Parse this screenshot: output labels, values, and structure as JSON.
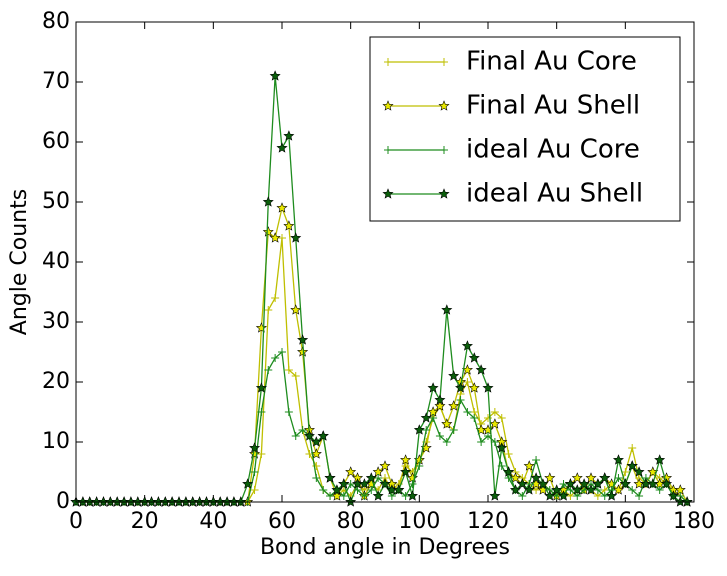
{
  "chart_data": {
    "type": "line",
    "xlabel": "Bond angle in Degrees",
    "ylabel": "Angle Counts",
    "x": [
      0,
      2,
      4,
      6,
      8,
      10,
      12,
      14,
      16,
      18,
      20,
      22,
      24,
      26,
      28,
      30,
      32,
      34,
      36,
      38,
      40,
      42,
      44,
      46,
      48,
      50,
      52,
      54,
      56,
      58,
      60,
      62,
      64,
      66,
      68,
      70,
      72,
      74,
      76,
      78,
      80,
      82,
      84,
      86,
      88,
      90,
      92,
      94,
      96,
      98,
      100,
      102,
      104,
      106,
      108,
      110,
      112,
      114,
      116,
      118,
      120,
      122,
      124,
      126,
      128,
      130,
      132,
      134,
      136,
      138,
      140,
      142,
      144,
      146,
      148,
      150,
      152,
      154,
      156,
      158,
      160,
      162,
      164,
      166,
      168,
      170,
      172,
      174,
      176,
      178
    ],
    "series": [
      {
        "name": "Final Au Core",
        "color": "#bfbf00",
        "marker": "plus",
        "marker_color": "#bfbf00",
        "values": [
          0,
          0,
          0,
          0,
          0,
          0,
          0,
          0,
          0,
          0,
          0,
          0,
          0,
          0,
          0,
          0,
          0,
          0,
          0,
          0,
          0,
          0,
          0,
          0,
          0,
          0,
          2,
          8,
          32,
          34,
          44,
          22,
          21,
          12,
          8,
          6,
          2,
          1,
          1,
          2,
          1,
          3,
          2,
          3,
          2,
          4,
          2,
          3,
          6,
          5,
          7,
          10,
          14,
          16,
          13,
          12,
          18,
          20,
          15,
          13,
          14,
          15,
          14,
          8,
          5,
          4,
          3,
          2,
          3,
          2,
          1,
          2,
          1,
          2,
          3,
          2,
          1,
          2,
          3,
          2,
          5,
          9,
          4,
          3,
          5,
          4,
          3,
          2,
          1,
          0
        ]
      },
      {
        "name": "Final Au Shell",
        "color": "#bfbf00",
        "marker": "star",
        "marker_color": "#e8e800",
        "values": [
          0,
          0,
          0,
          0,
          0,
          0,
          0,
          0,
          0,
          0,
          0,
          0,
          0,
          0,
          0,
          0,
          0,
          0,
          0,
          0,
          0,
          0,
          0,
          0,
          0,
          0,
          8,
          29,
          45,
          44,
          49,
          46,
          32,
          25,
          12,
          8,
          11,
          4,
          1,
          3,
          5,
          4,
          1,
          3,
          5,
          6,
          3,
          2,
          7,
          4,
          7,
          9,
          15,
          16,
          13,
          16,
          20,
          22,
          19,
          12,
          12,
          13,
          10,
          5,
          4,
          3,
          6,
          3,
          2,
          4,
          1,
          2,
          3,
          4,
          2,
          4,
          3,
          4,
          3,
          2,
          3,
          6,
          3,
          3,
          5,
          3,
          4,
          2,
          2,
          0
        ]
      },
      {
        "name": "ideal Au Core",
        "color": "#1e8c1e",
        "marker": "plus",
        "marker_color": "#1e8c1e",
        "values": [
          0,
          0,
          0,
          0,
          0,
          0,
          0,
          0,
          0,
          0,
          0,
          0,
          0,
          0,
          0,
          0,
          0,
          0,
          0,
          0,
          0,
          0,
          0,
          0,
          0,
          0,
          5,
          15,
          22,
          24,
          25,
          15,
          11,
          12,
          11,
          4,
          2,
          1,
          2,
          1,
          3,
          2,
          1,
          2,
          4,
          3,
          1,
          2,
          1,
          3,
          6,
          12,
          14,
          11,
          10,
          12,
          17,
          15,
          14,
          10,
          11,
          10,
          6,
          4,
          2,
          1,
          3,
          7,
          3,
          2,
          1,
          3,
          2,
          1,
          2,
          3,
          2,
          1,
          2,
          4,
          3,
          2,
          1,
          4,
          3,
          2,
          3,
          1,
          1,
          0
        ]
      },
      {
        "name": "ideal Au Shell",
        "color": "#1e8c1e",
        "marker": "star",
        "marker_color": "#0b5e0b",
        "values": [
          0,
          0,
          0,
          0,
          0,
          0,
          0,
          0,
          0,
          0,
          0,
          0,
          0,
          0,
          0,
          0,
          0,
          0,
          0,
          0,
          0,
          0,
          0,
          0,
          0,
          3,
          9,
          19,
          50,
          71,
          59,
          61,
          44,
          27,
          11,
          10,
          11,
          4,
          2,
          3,
          0,
          3,
          3,
          4,
          1,
          3,
          2,
          2,
          5,
          1,
          12,
          14,
          19,
          17,
          32,
          21,
          19,
          26,
          24,
          22,
          19,
          1,
          9,
          5,
          2,
          3,
          2,
          4,
          3,
          1,
          2,
          1,
          3,
          2,
          3,
          2,
          3,
          4,
          1,
          7,
          3,
          6,
          5,
          3,
          3,
          7,
          3,
          1,
          0,
          0
        ]
      }
    ],
    "xlim": [
      0,
      180
    ],
    "xticks": [
      0,
      20,
      40,
      60,
      80,
      100,
      120,
      140,
      160,
      180
    ],
    "ylim": [
      0,
      80
    ],
    "yticks": [
      0,
      10,
      20,
      30,
      40,
      50,
      60,
      70,
      80
    ],
    "legend": "upper right"
  }
}
